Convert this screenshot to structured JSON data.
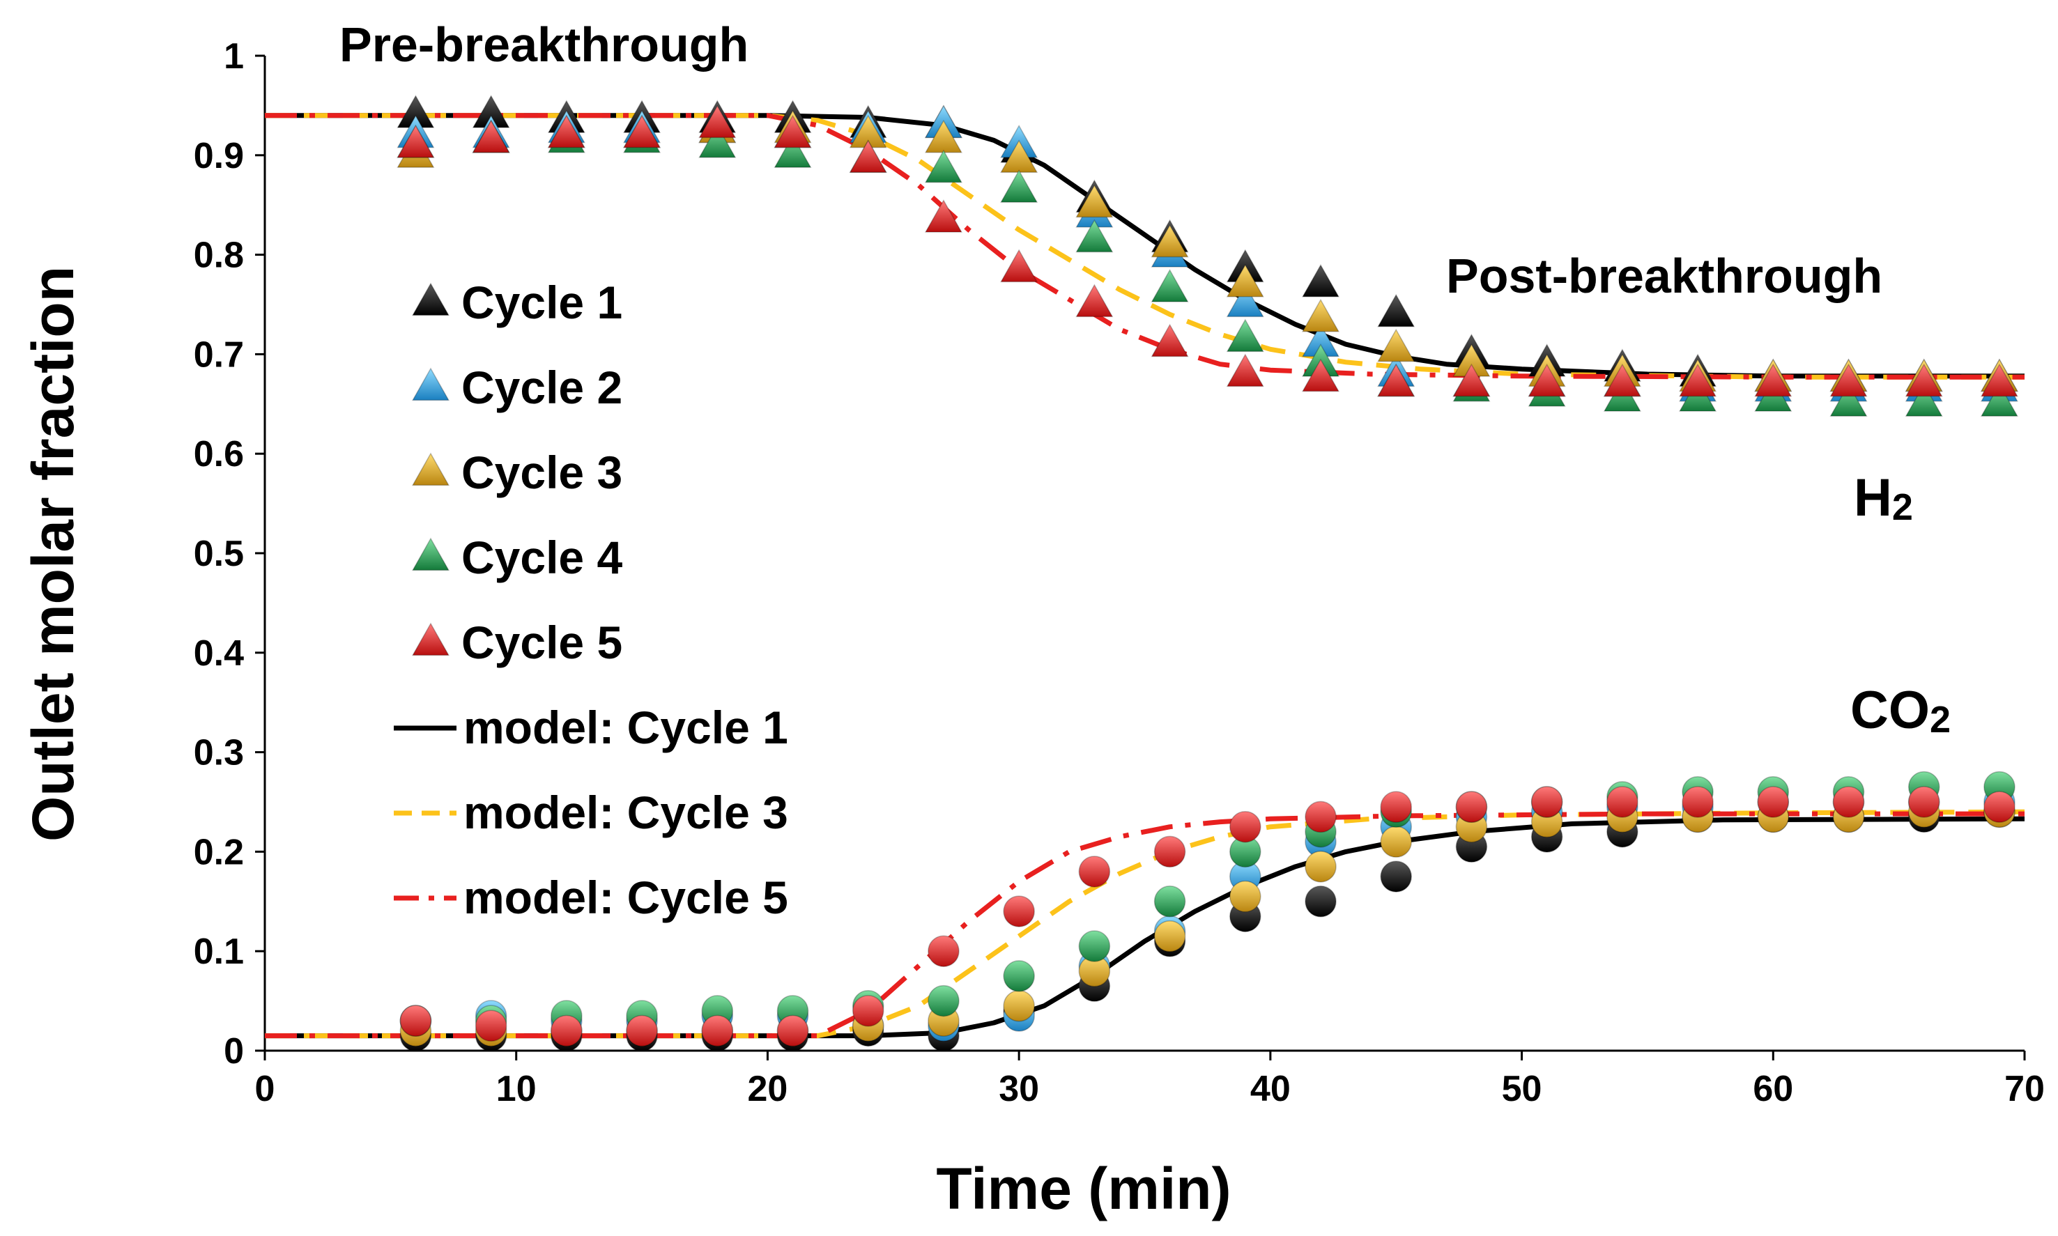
{
  "chart_data": {
    "type": "scatter",
    "title": "",
    "xlabel": "Time  (min)",
    "ylabel": "Outlet molar fraction",
    "xlim": [
      0,
      70
    ],
    "ylim": [
      0,
      1
    ],
    "x_ticks": [
      "0",
      "10",
      "20",
      "30",
      "40",
      "50",
      "60",
      "70"
    ],
    "y_ticks": [
      "0",
      "0.1",
      "0.2",
      "0.3",
      "0.4",
      "0.5",
      "0.6",
      "0.7",
      "0.8",
      "0.9",
      "1"
    ],
    "grid": false,
    "legend_position": "left",
    "annotations": {
      "pre": "Pre-breakthrough",
      "post": "Post-breakthrough",
      "h2": {
        "main": "H",
        "sub": "2"
      },
      "co2": {
        "main": "CO",
        "sub": "2"
      }
    },
    "colors": {
      "cycle1": "#111111",
      "cycle2": "#29a8e0",
      "cycle3": "#e2a81c",
      "cycle4": "#1f9a4c",
      "cycle5": "#e21b1b",
      "model1": "#000000",
      "model3": "#fcc21a",
      "model5": "#e8201f"
    },
    "x": [
      6,
      9,
      12,
      15,
      18,
      21,
      24,
      27,
      30,
      33,
      36,
      39,
      42,
      45,
      48,
      51,
      54,
      57,
      60,
      63,
      66,
      69
    ],
    "series": [
      {
        "name": "Cycle 1",
        "gas": "H2",
        "marker": "triangle",
        "values": [
          0.94,
          0.94,
          0.935,
          0.935,
          0.935,
          0.935,
          0.93,
          0.93,
          0.905,
          0.855,
          0.815,
          0.785,
          0.77,
          0.74,
          0.7,
          0.69,
          0.685,
          0.68,
          0.675,
          0.675,
          0.675,
          0.675
        ]
      },
      {
        "name": "Cycle 2",
        "gas": "H2",
        "marker": "triangle",
        "values": [
          0.92,
          0.92,
          0.925,
          0.925,
          0.925,
          0.92,
          0.925,
          0.93,
          0.91,
          0.84,
          0.8,
          0.75,
          0.71,
          0.68,
          0.67,
          0.67,
          0.67,
          0.665,
          0.665,
          0.665,
          0.665,
          0.665
        ]
      },
      {
        "name": "Cycle 3",
        "gas": "H2",
        "marker": "triangle",
        "values": [
          0.9,
          0.915,
          0.92,
          0.92,
          0.925,
          0.925,
          0.92,
          0.915,
          0.895,
          0.85,
          0.81,
          0.77,
          0.735,
          0.705,
          0.69,
          0.68,
          0.68,
          0.675,
          0.675,
          0.675,
          0.675,
          0.675
        ]
      },
      {
        "name": "Cycle 4",
        "gas": "H2",
        "marker": "triangle",
        "values": [
          0.91,
          0.915,
          0.915,
          0.915,
          0.91,
          0.9,
          0.895,
          0.885,
          0.865,
          0.815,
          0.765,
          0.715,
          0.69,
          0.67,
          0.665,
          0.66,
          0.655,
          0.655,
          0.655,
          0.65,
          0.65,
          0.65
        ]
      },
      {
        "name": "Cycle 5",
        "gas": "H2",
        "marker": "triangle",
        "values": [
          0.91,
          0.915,
          0.92,
          0.92,
          0.93,
          0.92,
          0.895,
          0.835,
          0.785,
          0.75,
          0.71,
          0.68,
          0.675,
          0.67,
          0.67,
          0.67,
          0.67,
          0.67,
          0.67,
          0.67,
          0.67,
          0.67
        ]
      },
      {
        "name": "Cycle 1",
        "gas": "CO2",
        "marker": "circle",
        "values": [
          0.015,
          0.015,
          0.015,
          0.015,
          0.015,
          0.015,
          0.02,
          0.015,
          0.04,
          0.065,
          0.11,
          0.135,
          0.15,
          0.175,
          0.205,
          0.215,
          0.22,
          0.235,
          0.235,
          0.235,
          0.235,
          0.24
        ]
      },
      {
        "name": "Cycle 2",
        "gas": "CO2",
        "marker": "circle",
        "values": [
          0.03,
          0.035,
          0.03,
          0.03,
          0.035,
          0.035,
          0.025,
          0.025,
          0.035,
          0.085,
          0.12,
          0.175,
          0.21,
          0.225,
          0.235,
          0.24,
          0.245,
          0.245,
          0.25,
          0.25,
          0.25,
          0.25
        ]
      },
      {
        "name": "Cycle 3",
        "gas": "CO2",
        "marker": "circle",
        "values": [
          0.02,
          0.02,
          0.02,
          0.02,
          0.02,
          0.02,
          0.025,
          0.03,
          0.045,
          0.08,
          0.115,
          0.155,
          0.185,
          0.21,
          0.225,
          0.23,
          0.235,
          0.235,
          0.235,
          0.235,
          0.24,
          0.24
        ]
      },
      {
        "name": "Cycle 4",
        "gas": "CO2",
        "marker": "circle",
        "values": [
          0.03,
          0.03,
          0.035,
          0.035,
          0.04,
          0.04,
          0.045,
          0.05,
          0.075,
          0.105,
          0.15,
          0.2,
          0.22,
          0.24,
          0.245,
          0.25,
          0.255,
          0.26,
          0.26,
          0.26,
          0.265,
          0.265
        ]
      },
      {
        "name": "Cycle 5",
        "gas": "CO2",
        "marker": "circle",
        "values": [
          0.03,
          0.025,
          0.02,
          0.02,
          0.02,
          0.02,
          0.04,
          0.1,
          0.14,
          0.18,
          0.2,
          0.225,
          0.235,
          0.245,
          0.245,
          0.25,
          0.25,
          0.25,
          0.25,
          0.25,
          0.25,
          0.245
        ]
      }
    ],
    "models": [
      {
        "name": "model: Cycle 1",
        "gas": "H2",
        "style": "solid",
        "points": [
          [
            0,
            0.94
          ],
          [
            20,
            0.94
          ],
          [
            24,
            0.938
          ],
          [
            27,
            0.93
          ],
          [
            29,
            0.915
          ],
          [
            31,
            0.89
          ],
          [
            33,
            0.855
          ],
          [
            35,
            0.82
          ],
          [
            37,
            0.785
          ],
          [
            39,
            0.755
          ],
          [
            41,
            0.73
          ],
          [
            43,
            0.71
          ],
          [
            45,
            0.698
          ],
          [
            47,
            0.69
          ],
          [
            50,
            0.685
          ],
          [
            55,
            0.68
          ],
          [
            60,
            0.678
          ],
          [
            70,
            0.678
          ]
        ]
      },
      {
        "name": "model: Cycle 3",
        "gas": "H2",
        "style": "dashed",
        "points": [
          [
            0,
            0.94
          ],
          [
            20,
            0.94
          ],
          [
            22,
            0.935
          ],
          [
            24,
            0.92
          ],
          [
            26,
            0.895
          ],
          [
            28,
            0.86
          ],
          [
            30,
            0.825
          ],
          [
            32,
            0.795
          ],
          [
            34,
            0.765
          ],
          [
            36,
            0.74
          ],
          [
            38,
            0.72
          ],
          [
            40,
            0.705
          ],
          [
            43,
            0.692
          ],
          [
            46,
            0.685
          ],
          [
            50,
            0.68
          ],
          [
            60,
            0.677
          ],
          [
            70,
            0.677
          ]
        ]
      },
      {
        "name": "model: Cycle 5",
        "gas": "H2",
        "style": "dashdot",
        "points": [
          [
            0,
            0.94
          ],
          [
            20,
            0.94
          ],
          [
            22,
            0.93
          ],
          [
            24,
            0.905
          ],
          [
            26,
            0.87
          ],
          [
            28,
            0.825
          ],
          [
            30,
            0.785
          ],
          [
            32,
            0.755
          ],
          [
            34,
            0.725
          ],
          [
            36,
            0.705
          ],
          [
            38,
            0.69
          ],
          [
            40,
            0.684
          ],
          [
            44,
            0.68
          ],
          [
            50,
            0.678
          ],
          [
            60,
            0.677
          ],
          [
            70,
            0.677
          ]
        ]
      },
      {
        "name": "model: Cycle 1",
        "gas": "CO2",
        "style": "solid",
        "points": [
          [
            0,
            0.015
          ],
          [
            24,
            0.015
          ],
          [
            27,
            0.018
          ],
          [
            29,
            0.028
          ],
          [
            31,
            0.045
          ],
          [
            33,
            0.075
          ],
          [
            35,
            0.11
          ],
          [
            37,
            0.14
          ],
          [
            39,
            0.165
          ],
          [
            41,
            0.185
          ],
          [
            43,
            0.2
          ],
          [
            45,
            0.21
          ],
          [
            48,
            0.22
          ],
          [
            52,
            0.228
          ],
          [
            58,
            0.232
          ],
          [
            70,
            0.233
          ]
        ]
      },
      {
        "name": "model: Cycle 3",
        "gas": "CO2",
        "style": "dashed",
        "points": [
          [
            0,
            0.015
          ],
          [
            22,
            0.015
          ],
          [
            24,
            0.025
          ],
          [
            26,
            0.045
          ],
          [
            28,
            0.08
          ],
          [
            30,
            0.115
          ],
          [
            32,
            0.15
          ],
          [
            34,
            0.178
          ],
          [
            36,
            0.2
          ],
          [
            38,
            0.215
          ],
          [
            40,
            0.225
          ],
          [
            44,
            0.233
          ],
          [
            50,
            0.237
          ],
          [
            60,
            0.239
          ],
          [
            70,
            0.24
          ]
        ]
      },
      {
        "name": "model: Cycle 5",
        "gas": "CO2",
        "style": "dashdot",
        "points": [
          [
            0,
            0.015
          ],
          [
            22,
            0.015
          ],
          [
            24,
            0.04
          ],
          [
            26,
            0.085
          ],
          [
            28,
            0.13
          ],
          [
            30,
            0.17
          ],
          [
            32,
            0.2
          ],
          [
            34,
            0.215
          ],
          [
            36,
            0.225
          ],
          [
            38,
            0.23
          ],
          [
            40,
            0.233
          ],
          [
            45,
            0.236
          ],
          [
            55,
            0.238
          ],
          [
            70,
            0.238
          ]
        ]
      }
    ],
    "legend": [
      {
        "label": "Cycle 1",
        "symbol": "triangle",
        "color_key": "cycle1"
      },
      {
        "label": "Cycle 2",
        "symbol": "triangle",
        "color_key": "cycle2"
      },
      {
        "label": "Cycle 3",
        "symbol": "triangle",
        "color_key": "cycle3"
      },
      {
        "label": "Cycle 4",
        "symbol": "triangle",
        "color_key": "cycle4"
      },
      {
        "label": "Cycle 5",
        "symbol": "triangle",
        "color_key": "cycle5"
      },
      {
        "label": "model: Cycle 1",
        "symbol": "solid",
        "color_key": "model1"
      },
      {
        "label": "model: Cycle 3",
        "symbol": "dashed",
        "color_key": "model3"
      },
      {
        "label": "model: Cycle 5",
        "symbol": "dashdot",
        "color_key": "model5"
      }
    ]
  }
}
